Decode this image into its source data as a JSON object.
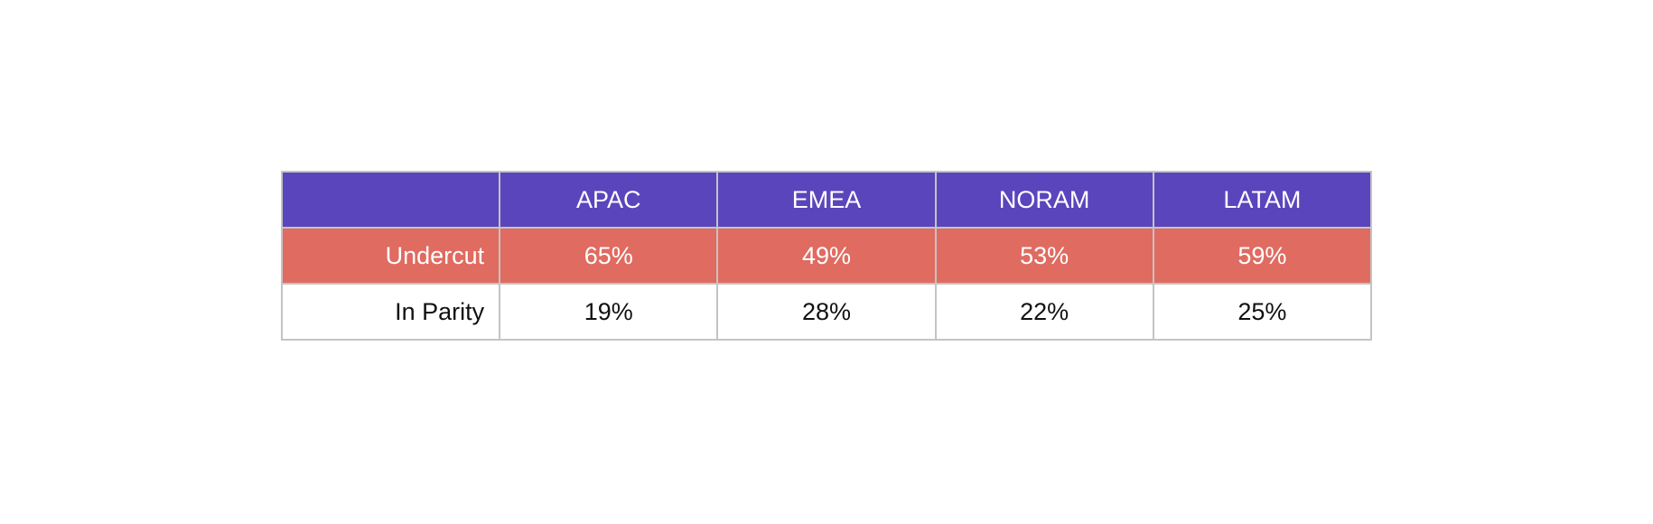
{
  "chart_data": {
    "type": "table",
    "columns": [
      "",
      "APAC",
      "EMEA",
      "NORAM",
      "LATAM"
    ],
    "rows": [
      {
        "label": "Undercut",
        "values": [
          "65%",
          "49%",
          "53%",
          "59%"
        ]
      },
      {
        "label": "In Parity",
        "values": [
          "19%",
          "28%",
          "22%",
          "25%"
        ]
      }
    ]
  },
  "colors": {
    "header_background": "#5b45bc",
    "highlight_row_background": "#e06b61",
    "grid_border": "#c4c4c4"
  }
}
